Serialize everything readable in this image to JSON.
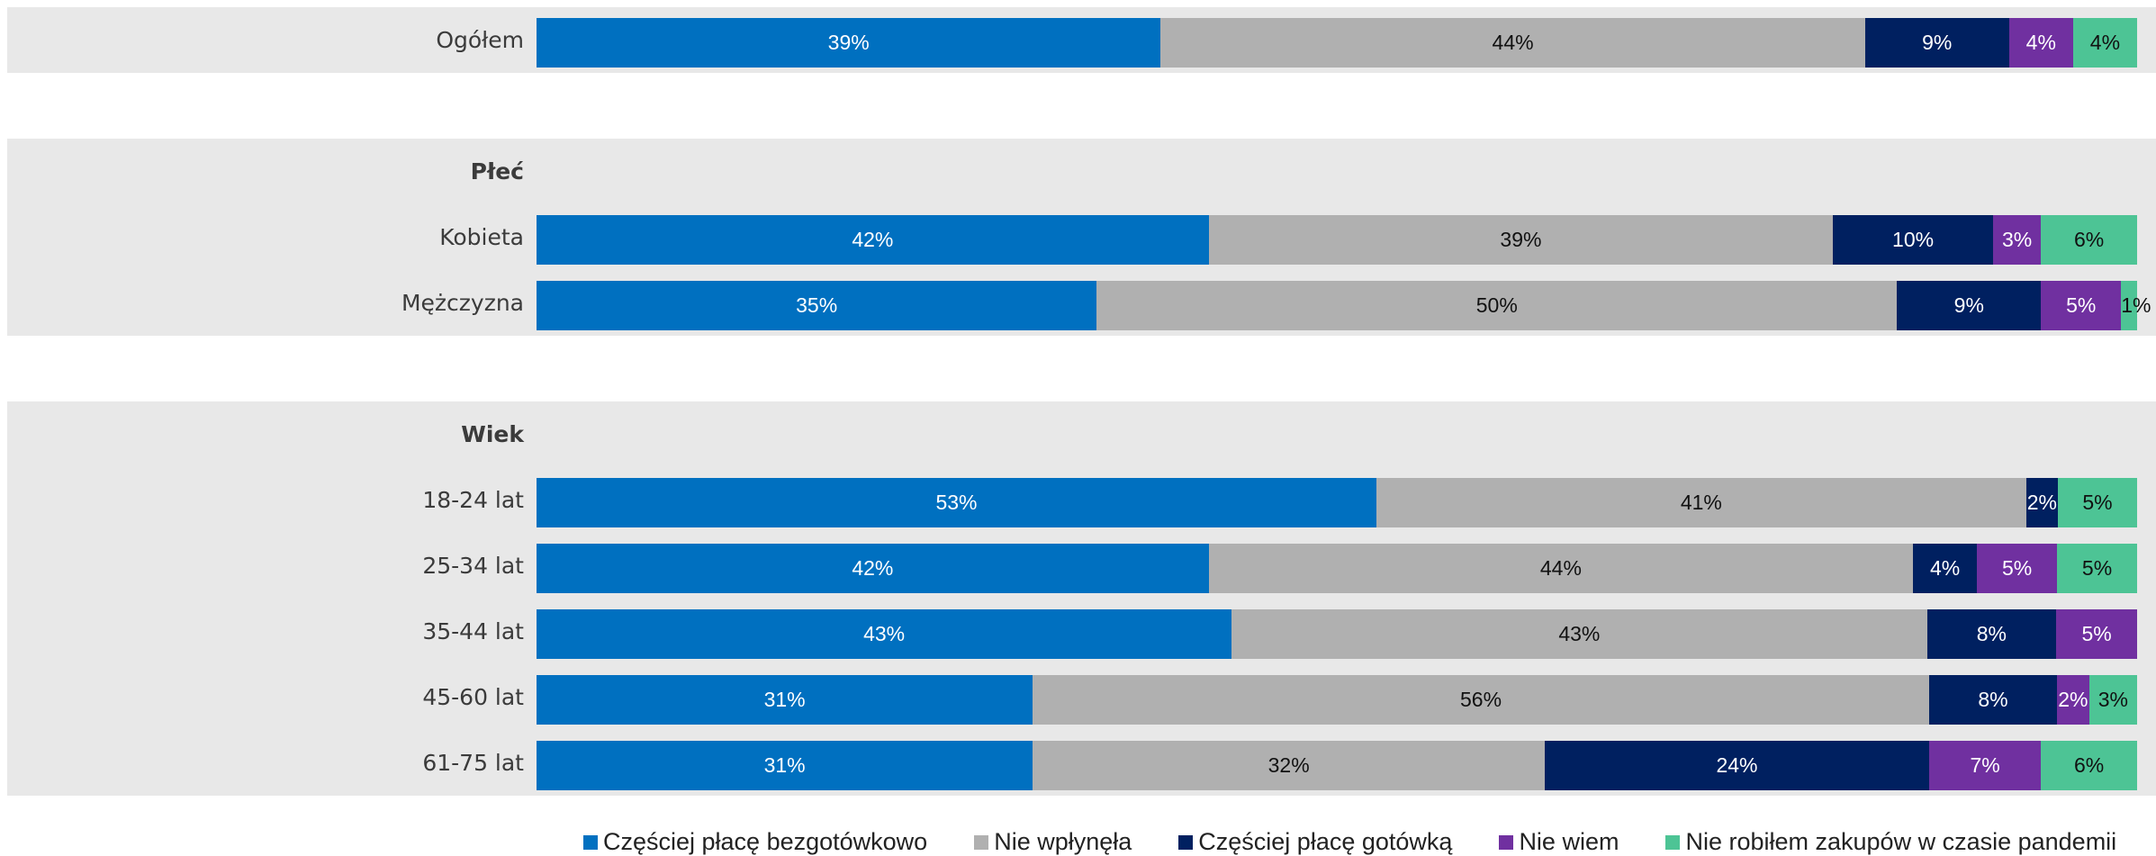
{
  "chart_data": {
    "type": "bar",
    "orientation": "horizontal-stacked-100",
    "series": [
      {
        "name": "Częściej płacę bezgotówkowo",
        "color": "#0070c0"
      },
      {
        "name": "Nie wpłynęła",
        "color": "#b0b0b0"
      },
      {
        "name": "Częściej płacę gotówką",
        "color": "#002060"
      },
      {
        "name": "Nie wiem",
        "color": "#7030a0"
      },
      {
        "name": "Nie robiłem zakupów w czasie pandemii",
        "color": "#4dc495"
      }
    ],
    "rows": [
      {
        "label": "Ogółem",
        "kind": "data",
        "values": [
          39,
          44,
          9,
          4,
          4
        ]
      },
      {
        "label": "",
        "kind": "spacer"
      },
      {
        "label": "Płeć",
        "kind": "section"
      },
      {
        "label": "Kobieta",
        "kind": "data",
        "values": [
          42,
          39,
          10,
          3,
          6
        ]
      },
      {
        "label": "Mężczyzna",
        "kind": "data",
        "values": [
          35,
          50,
          9,
          5,
          1
        ]
      },
      {
        "label": "",
        "kind": "spacer"
      },
      {
        "label": "Wiek",
        "kind": "section"
      },
      {
        "label": "18-24 lat",
        "kind": "data",
        "values": [
          53,
          41,
          2,
          0,
          5
        ]
      },
      {
        "label": "25-34 lat",
        "kind": "data",
        "values": [
          42,
          44,
          4,
          5,
          5
        ]
      },
      {
        "label": "35-44 lat",
        "kind": "data",
        "values": [
          43,
          43,
          8,
          5,
          0
        ]
      },
      {
        "label": "45-60 lat",
        "kind": "data",
        "values": [
          31,
          56,
          8,
          2,
          3
        ]
      },
      {
        "label": "61-75 lat",
        "kind": "data",
        "values": [
          31,
          32,
          24,
          7,
          6
        ]
      }
    ],
    "value_suffix": "%",
    "legend_position": "bottom"
  }
}
